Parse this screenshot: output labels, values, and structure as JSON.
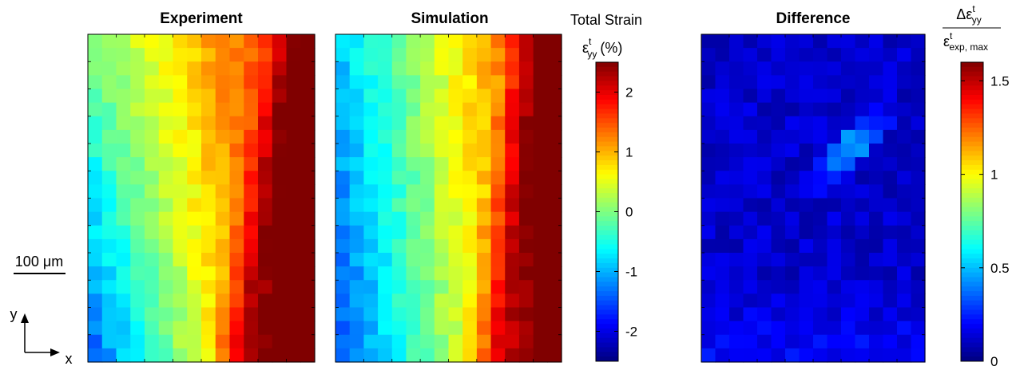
{
  "chart_data": [
    {
      "type": "heatmap",
      "title": "Experiment",
      "grid": {
        "rows": 24,
        "cols": 16
      },
      "value_model": "bilinear estimate of local strain field",
      "corners_pct": {
        "top_left": 0.0,
        "top_right": 2.0,
        "bottom_left": -1.5,
        "bottom_right": 2.4
      },
      "front": {
        "x_at_top": 0.78,
        "x_at_bottom": 0.5,
        "jump_pct": 0.9
      },
      "colormap": "jet",
      "clim": [
        -2.5,
        2.5
      ]
    },
    {
      "type": "heatmap",
      "title": "Simulation",
      "grid": {
        "rows": 24,
        "cols": 16
      },
      "corners_pct": {
        "top_left": -0.9,
        "top_right": 2.0,
        "bottom_left": -1.6,
        "bottom_right": 2.0
      },
      "front": {
        "x_at_top": 0.75,
        "x_at_bottom": 0.55,
        "jump_pct": 1.0
      },
      "colormap": "jet",
      "clim": [
        -2.5,
        2.5
      ]
    },
    {
      "type": "heatmap",
      "title": "Difference",
      "grid": {
        "rows": 24,
        "cols": 16
      },
      "base_value": 0.12,
      "hotspot": {
        "col": 10,
        "row": 8,
        "value": 0.45
      },
      "colormap": "jet",
      "clim": [
        0,
        1.6
      ]
    }
  ],
  "colorbar_strain": {
    "title": "Total Strain",
    "label_main": "ε",
    "label_sup": "t",
    "label_sub": "yy",
    "label_unit": "(%)",
    "ticks": [
      2,
      1,
      0,
      -1,
      -2
    ],
    "tick_labels": [
      "2",
      "1",
      "0",
      "-1",
      "-2"
    ],
    "range": [
      -2.5,
      2.5
    ]
  },
  "colorbar_diff": {
    "num_main": "Δε",
    "num_sup": "t",
    "num_sub": "yy",
    "den_main": "ε",
    "den_sup": "t",
    "den_sub": "exp, max",
    "ticks": [
      1.5,
      1,
      0.5,
      0
    ],
    "tick_labels": [
      "1.5",
      "1",
      "0.5",
      "0"
    ],
    "range": [
      0,
      1.6
    ]
  },
  "scalebar": {
    "label": "100 μm"
  },
  "axes_indicator": {
    "x_label": "x",
    "y_label": "y"
  }
}
